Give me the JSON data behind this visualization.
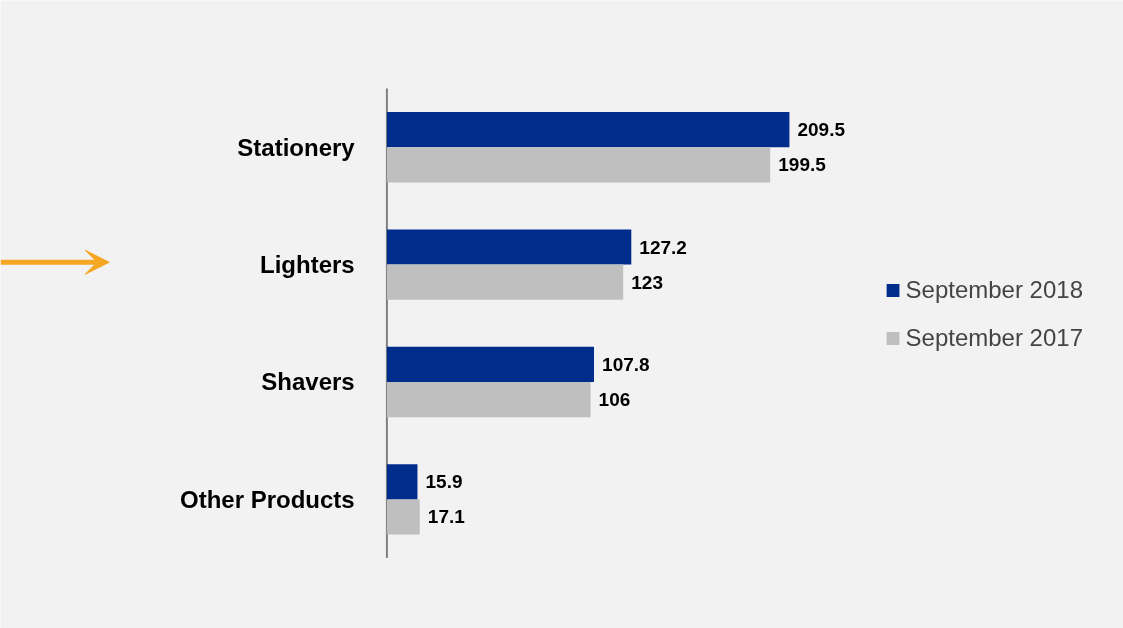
{
  "chart_data": {
    "type": "bar",
    "orientation": "horizontal",
    "categories": [
      "Stationery",
      "Lighters",
      "Shavers",
      "Other Products"
    ],
    "series": [
      {
        "name": "September 2018",
        "color": "#002c8c",
        "values": [
          209.5,
          127.2,
          107.8,
          15.9
        ]
      },
      {
        "name": "September 2017",
        "color": "#bfbfbf",
        "values": [
          199.5,
          123,
          106,
          17.1
        ]
      }
    ],
    "data_labels": true,
    "legend": "right",
    "grid": false,
    "tick_labels": "y"
  }
}
